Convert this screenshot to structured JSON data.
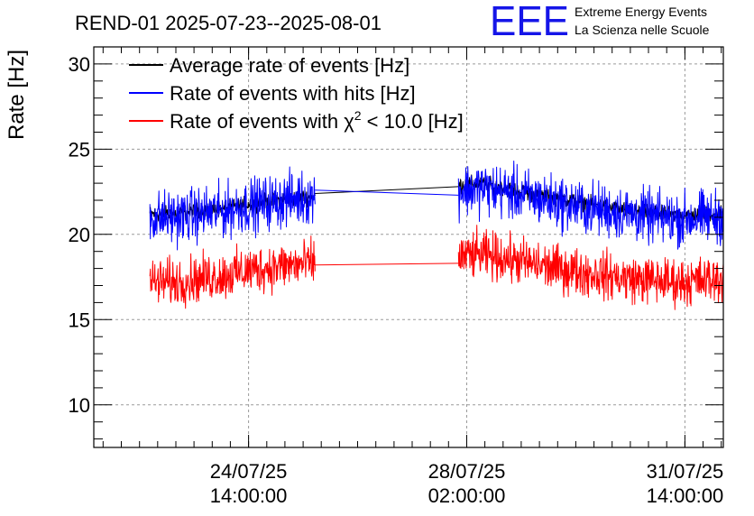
{
  "chart_data": {
    "type": "line",
    "title": "REND-01 2025-07-23--2025-08-01",
    "xlabel": "",
    "ylabel": "Rate [Hz]",
    "x_range_days": [
      -0.9,
      9.2
    ],
    "ylim": [
      7.5,
      31.0
    ],
    "y_ticks": [
      10,
      15,
      20,
      25,
      30
    ],
    "x_ticks": [
      {
        "day": 1.583,
        "date": "24/07/25",
        "time": "14:00:00"
      },
      {
        "day": 5.083,
        "date": "28/07/25",
        "time": "02:00:00"
      },
      {
        "day": 8.583,
        "date": "31/07/25",
        "time": "14:00:00"
      }
    ],
    "grid": true,
    "legend": {
      "position": "top-left",
      "entries": [
        {
          "label": "Average rate of events [Hz]",
          "color": "#000000"
        },
        {
          "label": "Rate of events with hits [Hz]",
          "color": "#0000ff"
        },
        {
          "label_prefix": "Rate of events with χ",
          "label_sup": "2",
          "label_suffix": " < 10.0 [Hz]",
          "color": "#ff0000"
        }
      ]
    },
    "data_gap_days": [
      2.65,
      4.95
    ],
    "series": [
      {
        "name": "Average rate of events [Hz]",
        "color": "#000000",
        "noise": 0.5,
        "segments": [
          {
            "days": [
              0.0,
              0.4,
              0.8,
              1.2,
              1.6,
              2.0,
              2.3,
              2.65
            ],
            "values": [
              21.2,
              21.2,
              21.4,
              21.5,
              21.8,
              22.0,
              22.1,
              22.2
            ]
          },
          {
            "days": [
              2.65,
              4.95
            ],
            "values": [
              22.4,
              22.8
            ],
            "noise": 0
          },
          {
            "days": [
              4.95,
              5.3,
              5.7,
              6.1,
              6.5,
              6.9,
              7.3,
              7.7,
              8.1,
              8.5,
              8.9,
              9.2
            ],
            "values": [
              22.9,
              23.0,
              22.7,
              22.4,
              22.2,
              21.9,
              21.6,
              21.4,
              21.2,
              21.1,
              21.2,
              21.3
            ]
          }
        ]
      },
      {
        "name": "Rate of events with hits [Hz]",
        "color": "#0000ff",
        "noise": 1.7,
        "segments": [
          {
            "days": [
              0.0,
              0.4,
              0.8,
              1.2,
              1.6,
              2.0,
              2.3,
              2.65
            ],
            "values": [
              21.0,
              21.0,
              21.2,
              21.4,
              21.7,
              21.9,
              22.1,
              22.2
            ]
          },
          {
            "days": [
              2.65,
              4.95
            ],
            "values": [
              22.6,
              22.3
            ],
            "noise": 0
          },
          {
            "days": [
              4.95,
              5.3,
              5.7,
              6.1,
              6.5,
              6.9,
              7.3,
              7.7,
              8.1,
              8.5,
              8.9,
              9.2
            ],
            "values": [
              22.6,
              22.7,
              22.5,
              22.2,
              21.9,
              21.6,
              21.4,
              21.2,
              21.0,
              20.9,
              21.0,
              21.1
            ]
          }
        ]
      },
      {
        "name": "Rate of events with χ2 < 10.0 [Hz]",
        "color": "#ff0000",
        "noise": 1.5,
        "segments": [
          {
            "days": [
              0.0,
              0.4,
              0.8,
              1.2,
              1.6,
              2.0,
              2.3,
              2.65
            ],
            "values": [
              17.2,
              17.2,
              17.4,
              17.6,
              17.9,
              18.1,
              18.2,
              18.3
            ]
          },
          {
            "days": [
              2.65,
              4.95
            ],
            "values": [
              18.2,
              18.3
            ],
            "noise": 0
          },
          {
            "days": [
              4.95,
              5.3,
              5.7,
              6.1,
              6.5,
              6.9,
              7.3,
              7.7,
              8.1,
              8.5,
              8.9,
              9.2
            ],
            "values": [
              18.7,
              18.8,
              18.6,
              18.3,
              18.0,
              17.8,
              17.6,
              17.4,
              17.3,
              17.2,
              17.3,
              17.4
            ]
          }
        ]
      }
    ]
  },
  "logo": {
    "mark": "EEE",
    "line1": "Extreme Energy Events",
    "line2": "La Scienza nelle Scuole",
    "color": "#1515e8"
  }
}
